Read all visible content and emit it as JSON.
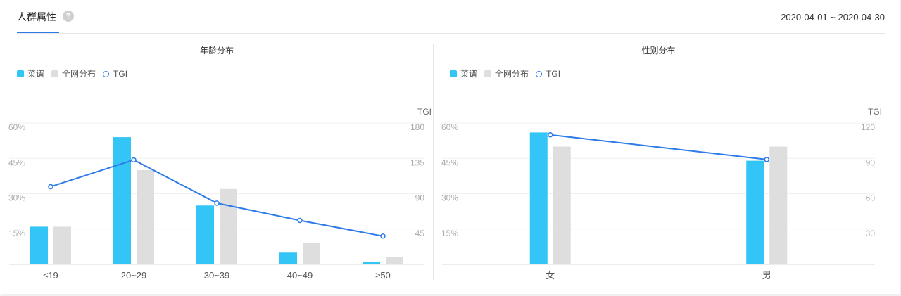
{
  "header": {
    "title": "人群属性",
    "help_icon": "question-circle-icon",
    "help_glyph": "?",
    "date_range": "2020-04-01 ~ 2020-04-30"
  },
  "colors": {
    "primary": "#33c5f5",
    "secondary": "#dedede",
    "tgi_line": "#2d7ae8",
    "tab_accent": "#2d7ae8"
  },
  "legend": {
    "series1": "菜谱",
    "series2": "全网分布",
    "series3": "TGI"
  },
  "charts": {
    "age": {
      "title": "年龄分布"
    },
    "gender": {
      "title": "性别分布"
    }
  },
  "chart_data": [
    {
      "type": "bar",
      "title": "年龄分布",
      "categories": [
        "≤19",
        "20~29",
        "30~39",
        "40~49",
        "≥50"
      ],
      "series": [
        {
          "name": "菜谱",
          "type": "bar",
          "axis": "left",
          "values": [
            16,
            54,
            25,
            5,
            1
          ]
        },
        {
          "name": "全网分布",
          "type": "bar",
          "axis": "left",
          "values": [
            16,
            40,
            32,
            9,
            3
          ]
        },
        {
          "name": "TGI",
          "type": "line",
          "axis": "right",
          "values": [
            99,
            133,
            78,
            56,
            36
          ]
        }
      ],
      "ylabel": "",
      "y2label": "TGI",
      "ylim": [
        0,
        60
      ],
      "yticks": [
        "60%",
        "45%",
        "30%",
        "15%"
      ],
      "y2lim": [
        0,
        180
      ],
      "y2ticks": [
        "180",
        "135",
        "90",
        "45"
      ],
      "grid": true,
      "legend_position": "top-left"
    },
    {
      "type": "bar",
      "title": "性别分布",
      "categories": [
        "女",
        "男"
      ],
      "series": [
        {
          "name": "菜谱",
          "type": "bar",
          "axis": "left",
          "values": [
            56,
            44
          ]
        },
        {
          "name": "全网分布",
          "type": "bar",
          "axis": "left",
          "values": [
            50,
            50
          ]
        },
        {
          "name": "TGI",
          "type": "line",
          "axis": "right",
          "values": [
            110,
            89
          ]
        }
      ],
      "ylabel": "",
      "y2label": "TGI",
      "ylim": [
        0,
        60
      ],
      "yticks": [
        "60%",
        "45%",
        "30%",
        "15%"
      ],
      "y2lim": [
        0,
        120
      ],
      "y2ticks": [
        "120",
        "90",
        "60",
        "30"
      ],
      "grid": true,
      "legend_position": "top-left"
    }
  ]
}
